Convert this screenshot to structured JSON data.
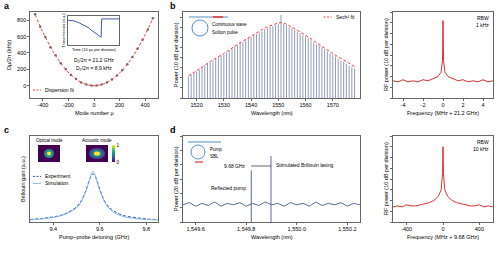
{
  "chart_data": [
    {
      "label": "a",
      "type": "scatter",
      "x_label": "Mode number μ",
      "y_label": "Dμ/2π (kHz)",
      "xlim": [
        -500,
        500
      ],
      "xticks": [
        -400,
        -200,
        0,
        200,
        400
      ],
      "ylim": [
        -150,
        900
      ],
      "yticks": [
        0,
        200,
        400,
        600,
        800
      ],
      "legend": "bottom left",
      "series": [
        {
          "type": "scatter",
          "marker": "circle",
          "color": "#6e6e6e",
          "x": [
            -460,
            -420,
            -380,
            -340,
            -300,
            -260,
            -220,
            -180,
            -140,
            -100,
            -60,
            -20,
            20,
            60,
            100,
            140,
            180,
            220,
            260,
            300,
            340,
            380,
            420,
            460
          ],
          "values": [
            872,
            720,
            595,
            470,
            372,
            274,
            200,
            131,
            82,
            40,
            16,
            3,
            2,
            14,
            39,
            76,
            126,
            188,
            263,
            351,
            450,
            562,
            687,
            825
          ]
        },
        {
          "name": "Dispersion fit",
          "type": "line",
          "line_style": "dash",
          "color": "#e8302a",
          "x": [
            -460,
            -400,
            -320,
            -240,
            -160,
            -80,
            0,
            80,
            160,
            240,
            320,
            400,
            460
          ],
          "values": [
            868,
            656,
            420,
            236,
            105,
            26,
            0,
            25,
            100,
            224,
            399,
            623,
            825
          ]
        }
      ],
      "annotations": [
        "D₁/2π = 21.2 GHz",
        "D₂/2π = 8.9 kHz"
      ],
      "inset": {
        "type": "line",
        "x_label": "Time (10 μs per division)",
        "y_label": "Transmission (a.u.)",
        "tick_labels": false,
        "xlim": [
          0,
          10
        ],
        "ylim": [
          0,
          1
        ],
        "color": "#2b4c9b",
        "x": [
          0,
          1,
          2,
          3,
          4,
          4.5,
          5,
          5.5,
          6,
          6.5,
          6.6,
          7,
          8,
          9,
          10
        ],
        "values": [
          0.85,
          0.84,
          0.78,
          0.7,
          0.6,
          0.52,
          0.45,
          0.38,
          0.32,
          0.27,
          0.9,
          0.9,
          0.9,
          0.9,
          0.9
        ]
      }
    },
    {
      "label": "b",
      "type": "stem",
      "x_label": "Wavelength (nm)",
      "y_label": "Power (10 dB per division)",
      "xlim": [
        1515,
        1580
      ],
      "xticks": [
        1520,
        1530,
        1540,
        1550,
        1560,
        1570
      ],
      "ylim": [
        0,
        8.5
      ],
      "yticks": [
        0,
        1,
        2,
        3,
        4,
        5,
        6,
        7,
        8
      ],
      "tick_labels": "x",
      "legend": "top right",
      "series": [
        {
          "type": "stem",
          "color": "#4a5a8c",
          "x": [
            1517,
            1518,
            1519,
            1520,
            1521,
            1522,
            1523,
            1524,
            1525,
            1526,
            1527,
            1528,
            1529,
            1530,
            1531,
            1532,
            1533,
            1534,
            1535,
            1536,
            1537,
            1538,
            1539,
            1540,
            1541,
            1542,
            1543,
            1544,
            1545,
            1546,
            1547,
            1548,
            1549,
            1550,
            1551,
            1552,
            1553,
            1554,
            1555,
            1556,
            1557,
            1558,
            1559,
            1560,
            1561,
            1562,
            1563,
            1564,
            1565,
            1566,
            1567,
            1568,
            1569,
            1570,
            1571,
            1572,
            1573,
            1574,
            1575,
            1576,
            1577,
            1578
          ],
          "values": [
            2.1,
            2.3,
            2.5,
            2.6,
            2.8,
            3.0,
            3.2,
            3.4,
            3.5,
            3.7,
            3.9,
            4.0,
            4.2,
            4.3,
            4.5,
            4.7,
            4.9,
            5.1,
            5.2,
            5.4,
            5.5,
            5.7,
            5.9,
            6.0,
            6.2,
            6.3,
            6.5,
            6.6,
            6.8,
            6.9,
            7.0,
            7.1,
            7.2,
            7.3,
            8.2,
            7.3,
            7.2,
            7.0,
            6.9,
            6.7,
            6.5,
            6.4,
            6.2,
            6.1,
            5.9,
            5.7,
            5.5,
            5.3,
            5.2,
            5.0,
            4.8,
            4.6,
            4.4,
            4.3,
            4.1,
            3.9,
            3.7,
            3.6,
            3.4,
            3.2,
            3.1,
            2.9
          ]
        },
        {
          "name": "Sech² fit",
          "type": "line",
          "line_style": "dash",
          "color": "#e8302a",
          "x": [
            1517,
            1520,
            1525,
            1530,
            1535,
            1540,
            1545,
            1550,
            1551,
            1552,
            1555,
            1560,
            1565,
            1570,
            1575,
            1578
          ],
          "values": [
            2.2,
            2.7,
            3.6,
            4.4,
            5.3,
            6.1,
            6.9,
            7.4,
            7.45,
            7.4,
            7.0,
            6.2,
            5.3,
            4.4,
            3.6,
            3.1
          ]
        }
      ],
      "inset_labels": [
        "Continuous wave",
        "Soliton pulse"
      ]
    },
    {
      "type": "line",
      "x_label": "Frequency (MHz + 21.2 GHz)",
      "y_label": "RF power (10 dB per division)",
      "xlim": [
        -5,
        5
      ],
      "xticks": [
        -4,
        -2,
        0,
        2,
        4
      ],
      "ylim": [
        0,
        8
      ],
      "yticks": [
        0,
        1,
        2,
        3,
        4,
        5,
        6,
        7,
        8
      ],
      "tick_labels": "x",
      "color": "#d7191c",
      "x": [
        -5,
        -4.5,
        -4,
        -3.5,
        -3,
        -2.5,
        -2,
        -1.5,
        -1,
        -0.5,
        -0.2,
        -0.05,
        0,
        0.05,
        0.2,
        0.5,
        1,
        1.5,
        2,
        2.5,
        3,
        3.5,
        4,
        4.5,
        5
      ],
      "values": [
        1.6,
        1.5,
        1.7,
        1.5,
        1.6,
        1.5,
        1.7,
        1.6,
        1.8,
        2.0,
        2.4,
        3.5,
        7.2,
        3.5,
        2.4,
        2.0,
        1.8,
        1.6,
        1.7,
        1.5,
        1.6,
        1.5,
        1.7,
        1.5,
        1.6
      ],
      "annotations": [
        "RBW",
        "1 kHz"
      ]
    },
    {
      "label": "c",
      "type": "line",
      "x_label": "Pump–probe detuning (GHz)",
      "y_label": "Brillouin gain (a.u.)",
      "xlim": [
        9.3,
        9.85
      ],
      "xticks": [
        9.4,
        9.6,
        9.8
      ],
      "ylim": [
        0,
        1.7
      ],
      "tick_labels": "x",
      "legend": "left",
      "series": [
        {
          "name": "Experiment",
          "type": "line",
          "line_style": "dash",
          "color": "#1f3f8f",
          "x": [
            9.3,
            9.35,
            9.4,
            9.45,
            9.5,
            9.52,
            9.54,
            9.56,
            9.57,
            9.58,
            9.6,
            9.62,
            9.65,
            9.7,
            9.75,
            9.8,
            9.85
          ],
          "values": [
            0.05,
            0.07,
            0.1,
            0.16,
            0.3,
            0.42,
            0.62,
            0.88,
            0.95,
            0.9,
            0.65,
            0.42,
            0.25,
            0.13,
            0.09,
            0.06,
            0.05
          ]
        },
        {
          "name": "Simulation",
          "type": "line",
          "line_style": "solid",
          "color": "#7fb2e5",
          "x": [
            9.3,
            9.35,
            9.4,
            9.45,
            9.5,
            9.52,
            9.54,
            9.56,
            9.57,
            9.58,
            9.6,
            9.62,
            9.65,
            9.7,
            9.75,
            9.8,
            9.85
          ],
          "values": [
            0.04,
            0.06,
            0.09,
            0.15,
            0.28,
            0.4,
            0.6,
            0.9,
            1.0,
            0.92,
            0.62,
            0.4,
            0.22,
            0.11,
            0.07,
            0.05,
            0.04
          ]
        }
      ],
      "inset_labels": [
        "Optical mode",
        "Acoustic mode"
      ],
      "colorbar": {
        "range": [
          0,
          1
        ],
        "ticks": [
          0,
          1
        ]
      }
    },
    {
      "label": "d",
      "type": "line",
      "x_label": "Wavelength (nm)",
      "y_label": "Power (20 dB per division)",
      "xlim": [
        1549.55,
        1550.25
      ],
      "xticks": [
        {
          "value": 1549.6,
          "label": "1,549.6"
        },
        {
          "value": 1549.8,
          "label": "1,549.8"
        },
        {
          "value": 1550.0,
          "label": "1,550.0"
        },
        {
          "value": 1550.2,
          "label": "1,550.2"
        }
      ],
      "ylim": [
        0,
        6
      ],
      "yticks": [
        0,
        1,
        2,
        3,
        4,
        5,
        6
      ],
      "tick_labels": "x",
      "color": "#4a5a8c",
      "x": [
        1549.55,
        1549.575,
        1549.6,
        1549.625,
        1549.65,
        1549.675,
        1549.7,
        1549.725,
        1549.75,
        1549.775,
        1549.8,
        1549.825,
        1549.85,
        1549.875,
        1549.9,
        1549.925,
        1549.95,
        1549.975,
        1550.0,
        1550.025,
        1550.05,
        1550.075,
        1550.1,
        1550.125,
        1550.15,
        1550.175,
        1550.2,
        1550.225,
        1550.25
      ],
      "values": [
        1.2,
        1.35,
        1.1,
        1.3,
        1.15,
        1.4,
        1.1,
        1.3,
        1.2,
        1.35,
        1.1,
        1.3,
        1.15,
        1.4,
        1.2,
        1.3,
        1.1,
        1.35,
        1.2,
        1.3,
        1.1,
        1.4,
        1.15,
        1.3,
        1.2,
        1.35,
        1.1,
        1.3,
        1.2
      ],
      "peaks": [
        {
          "label": "Reflected pump",
          "x": 1549.82,
          "value": 3.6
        },
        {
          "label": "Stimulated Brillouin lasing",
          "x": 1549.898,
          "value": 4.6
        }
      ],
      "spacing_label": "9.68 GHz",
      "inset_labels": [
        "Pump",
        "SBL"
      ]
    },
    {
      "type": "line",
      "x_label": "Frequency (MHz + 9.68 GHz)",
      "y_label": "RF power (10 dB per division)",
      "xlim": [
        -550,
        550
      ],
      "xticks": [
        -400,
        0,
        400
      ],
      "ylim": [
        0,
        8
      ],
      "yticks": [
        0,
        1,
        2,
        3,
        4,
        5,
        6,
        7,
        8
      ],
      "tick_labels": "x",
      "color": "#d7191c",
      "x": [
        -550,
        -500,
        -450,
        -400,
        -350,
        -300,
        -250,
        -200,
        -150,
        -100,
        -50,
        -20,
        -5,
        0,
        5,
        20,
        50,
        100,
        150,
        200,
        250,
        300,
        350,
        400,
        450,
        500,
        550
      ],
      "values": [
        1.4,
        1.5,
        1.4,
        1.6,
        1.5,
        1.5,
        1.6,
        1.7,
        1.8,
        2.0,
        2.4,
        3.0,
        4.5,
        7.0,
        4.5,
        3.0,
        2.4,
        2.0,
        1.8,
        1.7,
        1.6,
        1.5,
        1.5,
        1.6,
        1.4,
        1.5,
        1.4
      ],
      "annotations": [
        "RBW",
        "10 kHz"
      ]
    }
  ]
}
